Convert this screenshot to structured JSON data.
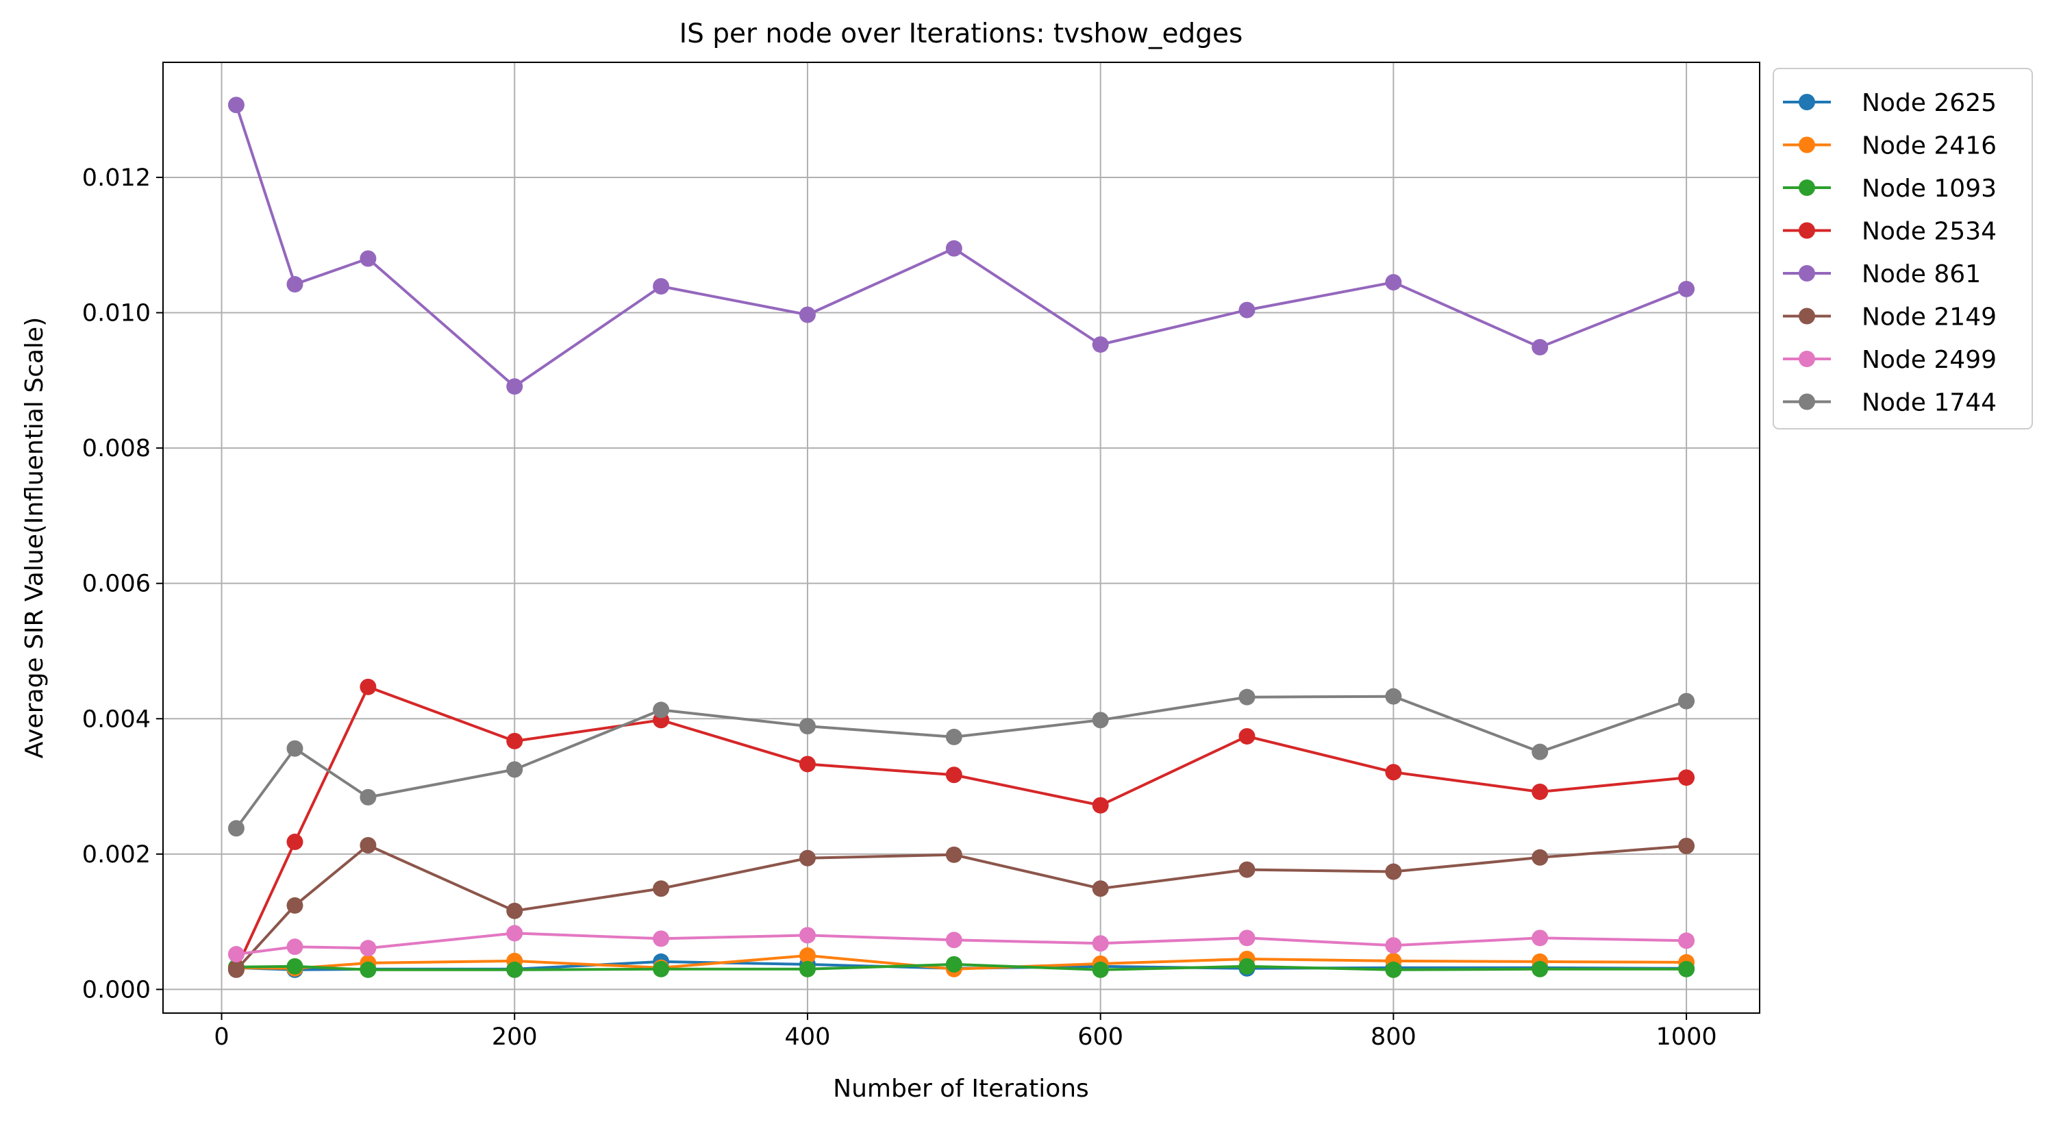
{
  "chart_data": {
    "type": "line",
    "title": "IS per node over Iterations: tvshow_edges",
    "xlabel": "Number of Iterations",
    "ylabel": "Average SIR Value(Influential Scale)",
    "xlim": [
      -40,
      1050
    ],
    "ylim": [
      -0.00035,
      0.0137
    ],
    "xticks": [
      0,
      200,
      400,
      600,
      800,
      1000
    ],
    "xtick_labels": [
      "0",
      "200",
      "400",
      "600",
      "800",
      "1000"
    ],
    "yticks": [
      0.0,
      0.002,
      0.004,
      0.006,
      0.008,
      0.01,
      0.012
    ],
    "ytick_labels": [
      "0.000",
      "0.002",
      "0.004",
      "0.006",
      "0.008",
      "0.010",
      "0.012"
    ],
    "grid": true,
    "legend_position": "outside upper right",
    "x": [
      10,
      50,
      100,
      200,
      300,
      400,
      500,
      600,
      700,
      800,
      900,
      1000
    ],
    "series": [
      {
        "name": "Node 2625",
        "color": "#1f77b4",
        "values": [
          0.00032,
          0.00029,
          0.0003,
          0.0003,
          0.00041,
          0.00037,
          0.00031,
          0.00034,
          0.00031,
          0.00032,
          0.00032,
          0.00031
        ]
      },
      {
        "name": "Node 2416",
        "color": "#ff7f0e",
        "values": [
          0.00032,
          0.00031,
          0.00039,
          0.00042,
          0.00032,
          0.0005,
          0.0003,
          0.00038,
          0.00045,
          0.00042,
          0.00041,
          0.0004
        ]
      },
      {
        "name": "Node 1093",
        "color": "#2ca02c",
        "values": [
          0.00033,
          0.00034,
          0.00029,
          0.00029,
          0.0003,
          0.0003,
          0.00037,
          0.00029,
          0.00034,
          0.00029,
          0.0003,
          0.0003
        ]
      },
      {
        "name": "Node 2534",
        "color": "#d62728",
        "values": [
          0.0003,
          0.00218,
          0.00447,
          0.00367,
          0.00398,
          0.00333,
          0.00317,
          0.00272,
          0.00374,
          0.00321,
          0.00292,
          0.00313
        ]
      },
      {
        "name": "Node 861",
        "color": "#9467bd",
        "values": [
          0.01307,
          0.01042,
          0.0108,
          0.00891,
          0.01039,
          0.00997,
          0.01095,
          0.00953,
          0.01004,
          0.01045,
          0.00949,
          0.01035
        ]
      },
      {
        "name": "Node 2149",
        "color": "#8c564b",
        "values": [
          0.00029,
          0.00124,
          0.00213,
          0.00116,
          0.00149,
          0.00194,
          0.00199,
          0.00149,
          0.00177,
          0.00174,
          0.00195,
          0.00212
        ]
      },
      {
        "name": "Node 2499",
        "color": "#e377c2",
        "values": [
          0.00052,
          0.00063,
          0.00061,
          0.00083,
          0.00075,
          0.0008,
          0.00073,
          0.00068,
          0.00076,
          0.00065,
          0.00076,
          0.00072
        ]
      },
      {
        "name": "Node 1744",
        "color": "#7f7f7f",
        "values": [
          0.00238,
          0.00356,
          0.00284,
          0.00325,
          0.00413,
          0.00389,
          0.00373,
          0.00398,
          0.00432,
          0.00433,
          0.00351,
          0.00426
        ]
      }
    ]
  }
}
